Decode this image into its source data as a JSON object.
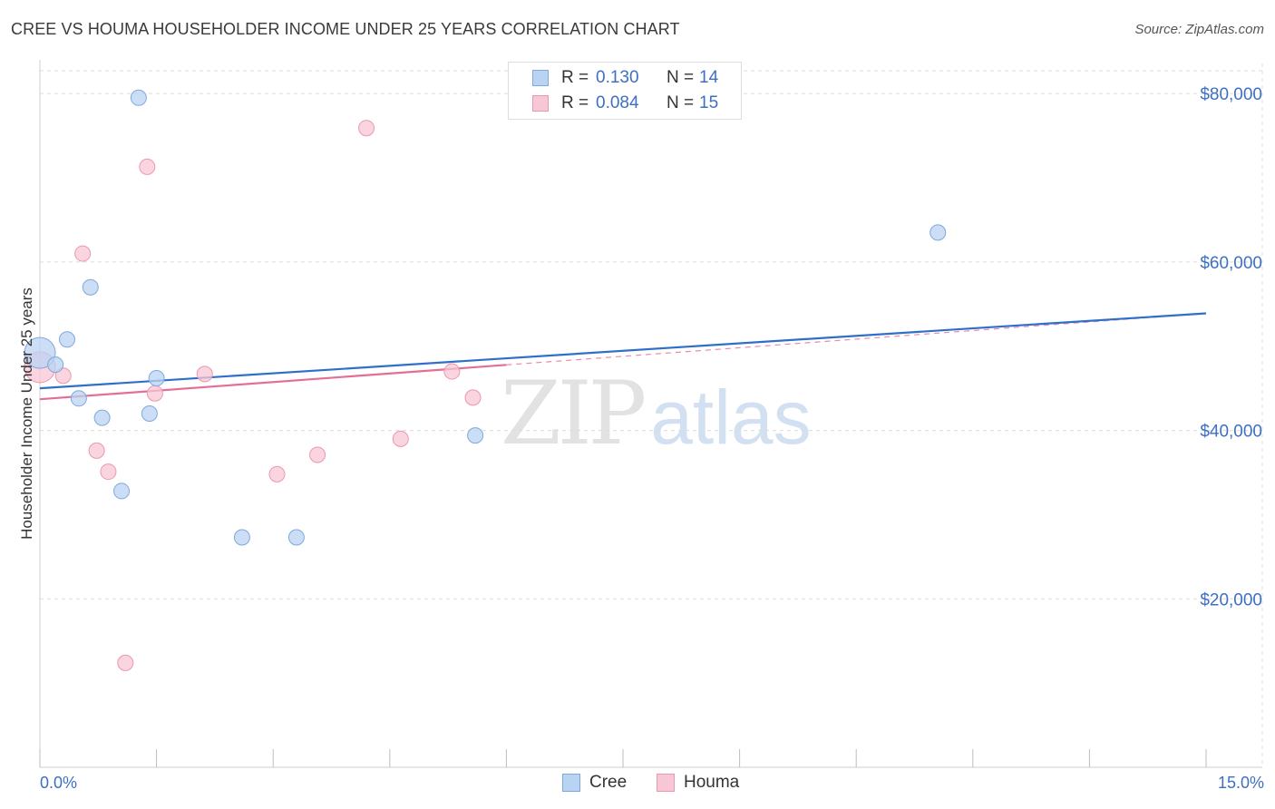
{
  "header": {
    "title": "CREE VS HOUMA HOUSEHOLDER INCOME UNDER 25 YEARS CORRELATION CHART",
    "source": "Source: ZipAtlas.com"
  },
  "watermark": {
    "zip": "ZIP",
    "atlas": "atlas"
  },
  "legend": {
    "rows": [
      {
        "r_label": "R =",
        "r_value": "0.130",
        "n_label": "N =",
        "n_value": "14"
      },
      {
        "r_label": "R =",
        "r_value": "0.084",
        "n_label": "N =",
        "n_value": "15"
      }
    ]
  },
  "bottom_legend": {
    "cree": "Cree",
    "houma": "Houma"
  },
  "colors": {
    "cree_fill": "#b9d3f3",
    "cree_stroke": "#7fa8dc",
    "cree_line": "#2f6fcc",
    "houma_fill": "#f8c7d5",
    "houma_stroke": "#eb97ae",
    "houma_line": "#e46e95",
    "grid": "#dcdcdc",
    "axis_text": "#3d6fc4"
  },
  "chart_data": {
    "type": "scatter",
    "title": "CREE VS HOUMA HOUSEHOLDER INCOME UNDER 25 YEARS CORRELATION CHART",
    "xlabel": "",
    "ylabel": "Householder Income Under 25 years",
    "xlim": [
      0,
      15
    ],
    "ylim": [
      0,
      84000
    ],
    "x_tick_labels": [
      "0.0%",
      "15.0%"
    ],
    "y_ticks": [
      20000,
      40000,
      60000,
      80000
    ],
    "y_tick_labels": [
      "$20,000",
      "$40,000",
      "$60,000",
      "$80,000"
    ],
    "grid": true,
    "legend_position": "top-center",
    "series": [
      {
        "name": "Cree",
        "R": 0.13,
        "N": 14,
        "points": [
          {
            "x": 0.0,
            "y": 49200,
            "big": true
          },
          {
            "x": 0.2,
            "y": 47800
          },
          {
            "x": 0.35,
            "y": 50800
          },
          {
            "x": 0.5,
            "y": 43800
          },
          {
            "x": 0.65,
            "y": 57000
          },
          {
            "x": 0.8,
            "y": 41500
          },
          {
            "x": 1.05,
            "y": 32800
          },
          {
            "x": 1.27,
            "y": 79500
          },
          {
            "x": 1.41,
            "y": 42000
          },
          {
            "x": 1.5,
            "y": 46200
          },
          {
            "x": 2.6,
            "y": 27300
          },
          {
            "x": 3.3,
            "y": 27300
          },
          {
            "x": 5.6,
            "y": 39400
          },
          {
            "x": 11.55,
            "y": 63500
          }
        ],
        "trend": {
          "x": [
            0,
            15
          ],
          "y": [
            45000,
            53900
          ]
        }
      },
      {
        "name": "Houma",
        "R": 0.084,
        "N": 15,
        "points": [
          {
            "x": 0.0,
            "y": 47500,
            "big": true
          },
          {
            "x": 0.3,
            "y": 46500
          },
          {
            "x": 0.55,
            "y": 61000
          },
          {
            "x": 0.73,
            "y": 37600
          },
          {
            "x": 0.88,
            "y": 35100
          },
          {
            "x": 1.1,
            "y": 12400
          },
          {
            "x": 1.38,
            "y": 71300
          },
          {
            "x": 1.48,
            "y": 44400
          },
          {
            "x": 2.12,
            "y": 46700
          },
          {
            "x": 3.05,
            "y": 34800
          },
          {
            "x": 3.57,
            "y": 37100
          },
          {
            "x": 4.2,
            "y": 75900
          },
          {
            "x": 4.64,
            "y": 39000
          },
          {
            "x": 5.3,
            "y": 47000
          },
          {
            "x": 5.57,
            "y": 43900
          }
        ],
        "trend": {
          "x": [
            0,
            15
          ],
          "y": [
            43700,
            53900
          ],
          "solid_until_x": 6.0
        }
      }
    ]
  }
}
